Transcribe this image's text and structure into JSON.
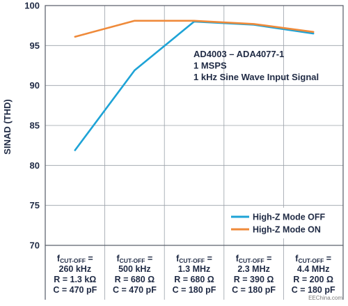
{
  "chart_data": {
    "type": "line",
    "ylabel": "SINAD (THD)",
    "ylim": [
      70,
      100
    ],
    "yticks": [
      70,
      75,
      80,
      85,
      90,
      95,
      100
    ],
    "grid": true,
    "legend_position": "bottom-right",
    "categories": [
      {
        "cutoff_prefix": "f",
        "cutoff_sub": "CUT-OFF",
        "cutoff_suffix": " =",
        "cutoff_value": "260 kHz",
        "r": "R = 1.3 kΩ",
        "c": "C = 470 pF"
      },
      {
        "cutoff_prefix": "f",
        "cutoff_sub": "CUT-OFF",
        "cutoff_suffix": " =",
        "cutoff_value": "500 kHz",
        "r": "R = 680 Ω",
        "c": "C = 470 pF"
      },
      {
        "cutoff_prefix": "f",
        "cutoff_sub": "CUT-OFF",
        "cutoff_suffix": " =",
        "cutoff_value": "1.3 MHz",
        "r": "R = 680 Ω",
        "c": "C = 180 pF"
      },
      {
        "cutoff_prefix": "f",
        "cutoff_sub": "CUT-OFF",
        "cutoff_suffix": " =",
        "cutoff_value": "2.3 MHz",
        "r": "R = 390 Ω",
        "c": "C = 180 pF"
      },
      {
        "cutoff_prefix": "f",
        "cutoff_sub": "CUT-OFF",
        "cutoff_suffix": " =",
        "cutoff_value": "4.4 MHz",
        "r": "R = 200 Ω",
        "c": "C = 180 pF"
      }
    ],
    "series": [
      {
        "name": "High-Z Mode OFF",
        "color": "#1ea3d6",
        "values": [
          81.9,
          91.9,
          98.0,
          97.6,
          96.5
        ]
      },
      {
        "name": "High-Z Mode ON",
        "color": "#ef8a3a",
        "values": [
          96.1,
          98.1,
          98.1,
          97.7,
          96.7
        ]
      }
    ],
    "annotations": [
      "AD4003 – ADA4077-1",
      "1 MSPS",
      "1 kHz Sine Wave Input Signal"
    ],
    "watermark": "EEChina.com"
  }
}
